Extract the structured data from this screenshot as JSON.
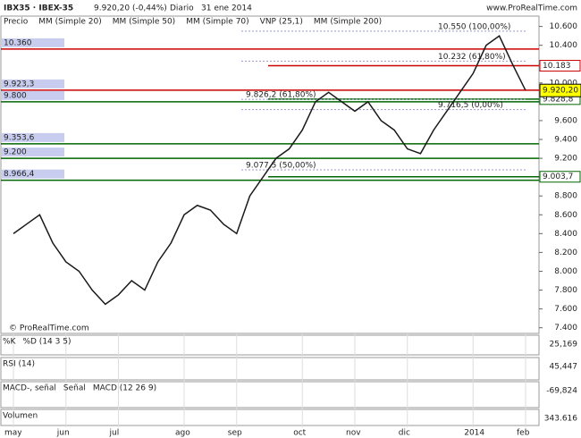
{
  "chart_data": {
    "type": "line",
    "title": "IBX35 · IBEX-35",
    "subtitle": "9.920,20 (-0,44%)",
    "period": "Diario",
    "date": "31 ene 2014",
    "source": "www.ProRealTime.com",
    "watermark": "© ProRealTime.com",
    "legend": [
      "Precio",
      "MM (Simple 20)",
      "MM (Simple 50)",
      "MM (Simple 70)",
      "VNP (25,1)",
      "MM (Simple 200)"
    ],
    "legend_colors": [
      "#333333",
      "#cc0000",
      "#888888",
      "#000080",
      "#aaaaff",
      "#006600"
    ],
    "categories": [
      "may",
      null,
      null,
      null,
      "jun",
      null,
      null,
      null,
      "jul",
      null,
      null,
      null,
      null,
      "ago",
      null,
      null,
      null,
      "sep",
      null,
      null,
      null,
      null,
      "oct",
      null,
      null,
      null,
      "nov",
      null,
      null,
      null,
      "dic",
      null,
      null,
      null,
      null,
      "2014",
      null,
      null,
      null,
      "feb"
    ],
    "series": [
      {
        "name": "Precio",
        "color": "#1a1a1a",
        "values": [
          8400,
          8500,
          8600,
          8300,
          8100,
          8000,
          7800,
          7650,
          7750,
          7900,
          7800,
          8100,
          8300,
          8600,
          8700,
          8650,
          8500,
          8400,
          8800,
          9000,
          9200,
          9300,
          9500,
          9800,
          9900,
          9800,
          9700,
          9800,
          9600,
          9500,
          9300,
          9250,
          9500,
          9700,
          9900,
          10100,
          10400,
          10500,
          10200,
          9920
        ]
      }
    ],
    "ylim": [
      7340,
      10710
    ],
    "yticks": [
      {
        "value": 10600,
        "label": "10.600"
      },
      {
        "value": 10400,
        "label": "10.400"
      },
      {
        "value": 10200,
        "label": "10.200"
      },
      {
        "value": 10000,
        "label": "10.000"
      },
      {
        "value": 9800,
        "label": "9.800"
      },
      {
        "value": 9600,
        "label": "9.600"
      },
      {
        "value": 9400,
        "label": "9.400"
      },
      {
        "value": 9200,
        "label": "9.200"
      },
      {
        "value": 9000,
        "label": "9.000"
      },
      {
        "value": 8800,
        "label": "8.800"
      },
      {
        "value": 8600,
        "label": "8.600"
      },
      {
        "value": 8400,
        "label": "8.400"
      },
      {
        "value": 8200,
        "label": "8.200"
      },
      {
        "value": 8000,
        "label": "8.000"
      },
      {
        "value": 7800,
        "label": "7.800"
      },
      {
        "value": 7600,
        "label": "7.600"
      },
      {
        "value": 7400,
        "label": "7.400"
      }
    ],
    "levels": [
      {
        "value": 10360,
        "label": "10.360",
        "color": "#cc0000"
      },
      {
        "value": 9923.3,
        "label": "9.923,3",
        "color": "#cc0000"
      },
      {
        "value": 9800,
        "label": "9.800",
        "color": "#006600"
      },
      {
        "value": 9353.6,
        "label": "9.353,6",
        "color": "#006600"
      },
      {
        "value": 9200,
        "label": "9.200",
        "color": "#006600"
      },
      {
        "value": 8966.4,
        "label": "8.966,4",
        "color": "#006600"
      }
    ],
    "right_levels": [
      {
        "value": 10183,
        "label": "10.183",
        "color": "#cc0000"
      },
      {
        "value": 9828.8,
        "label": "9.828,8",
        "color": "#006600"
      },
      {
        "value": 9003.7,
        "label": "9.003,7",
        "color": "#006600"
      }
    ],
    "last_price": {
      "value": 9920.2,
      "label": "9.920,20"
    },
    "fibo": [
      {
        "value": 10550,
        "label": "10.550 (100,00%)"
      },
      {
        "value": 10232,
        "label": "10.232 (61,80%)"
      },
      {
        "value": 9826.2,
        "label": "9.826,2 (61,80%)"
      },
      {
        "value": 9716.5,
        "label": "9.716,5 (0,00%)"
      },
      {
        "value": 9077.5,
        "label": "9.077,5 (50,00%)"
      }
    ],
    "panels": [
      {
        "labels": [
          "%K",
          "%D (14 3 5)"
        ],
        "value_label": "25,169"
      },
      {
        "labels": [
          "RSI (14)"
        ],
        "value_label": "45,447"
      },
      {
        "labels": [
          "MACD-, señal",
          "Señal",
          "MACD (12 26 9)"
        ],
        "value_label": "-69,824"
      },
      {
        "labels": [
          "Volumen"
        ],
        "value_label": "343.616"
      }
    ]
  }
}
